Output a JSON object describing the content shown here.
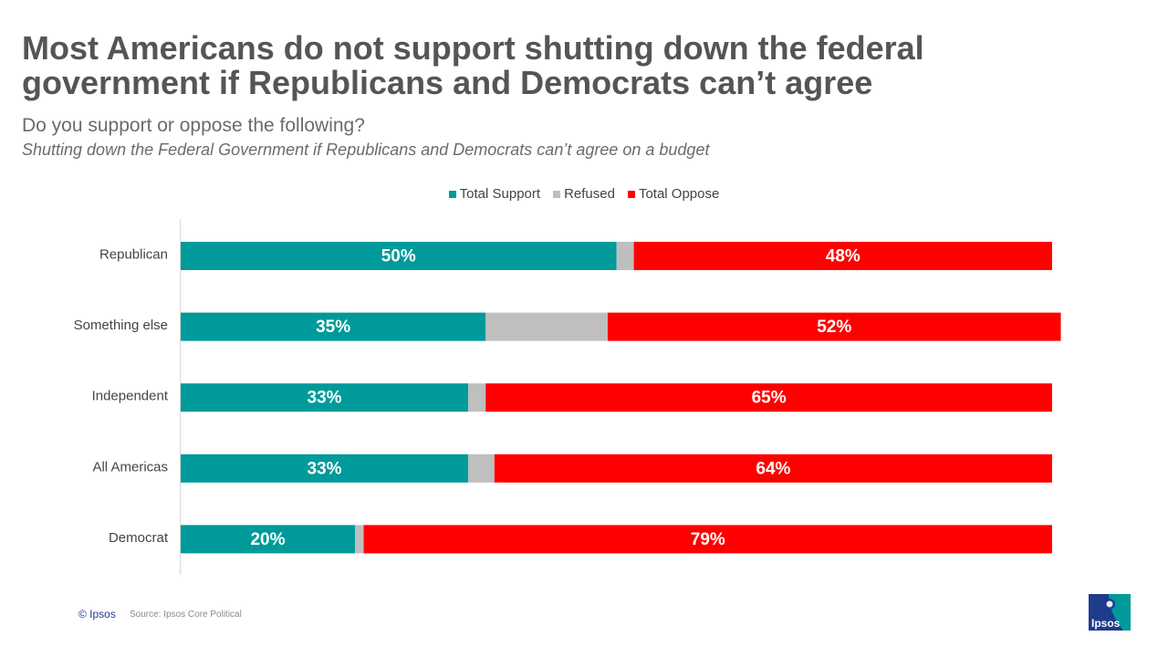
{
  "header": {
    "title": "Most Americans do not support shutting down the federal government if Republicans and Democrats can’t agree",
    "subtitle": "Do you support or oppose the following?",
    "question": "Shutting down the Federal Government if Republicans and Democrats can’t agree on a budget"
  },
  "colors": {
    "support": "#009a9a",
    "refused": "#bfbfbf",
    "oppose": "#ff0000"
  },
  "chart_data": {
    "type": "bar",
    "orientation": "horizontal",
    "stacked": true,
    "categories": [
      "Republican",
      "Something else",
      "Independent",
      "All Americas",
      "Democrat"
    ],
    "series": [
      {
        "name": "Total Support",
        "values": [
          50,
          35,
          33,
          33,
          20
        ],
        "labels": [
          "50%",
          "35%",
          "33%",
          "33%",
          "20%"
        ]
      },
      {
        "name": "Refused",
        "values": [
          2,
          14,
          2,
          3,
          1
        ]
      },
      {
        "name": "Total Oppose",
        "values": [
          48,
          52,
          65,
          64,
          79
        ],
        "labels": [
          "48%",
          "52%",
          "65%",
          "64%",
          "79%"
        ]
      }
    ],
    "xlim": [
      0,
      100
    ],
    "legend": "top-center"
  },
  "footer": {
    "copyright": "© Ipsos",
    "source": "Source: Ipsos Core Political",
    "logo_text": "Ipsos"
  }
}
